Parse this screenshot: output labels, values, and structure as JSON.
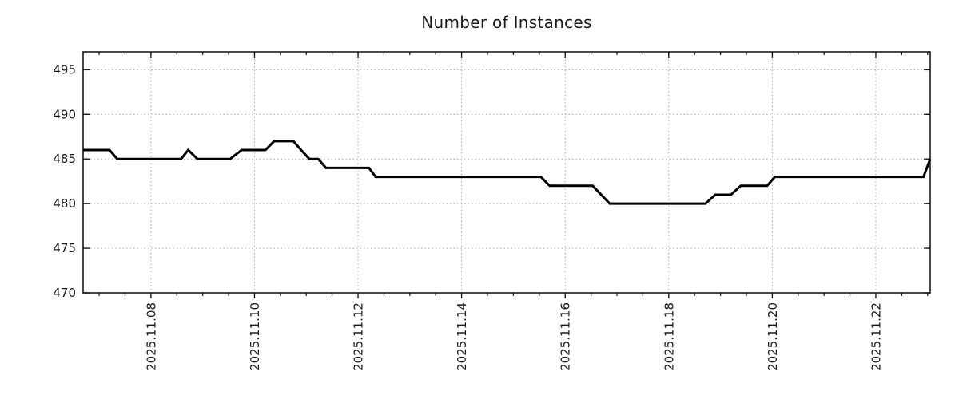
{
  "title": "Number of Instances",
  "colors": {
    "line": "#000000",
    "axis": "#1a1a1a",
    "grid": "#aaaaaa",
    "label": "#1a1a1a",
    "background": "#ffffff"
  },
  "chart_data": {
    "type": "line",
    "title": "Number of Instances",
    "xlabel": "",
    "ylabel": "",
    "legend": "none",
    "grid": "dotted",
    "x_unit": "day-of-November-2025 (fractional)",
    "xlim_days": [
      6.69,
      23.05
    ],
    "ylim": [
      470,
      497
    ],
    "y_ticks": [
      470,
      475,
      480,
      485,
      490,
      495
    ],
    "x_major_ticks": [
      {
        "day": 8,
        "label": "2025.11.08"
      },
      {
        "day": 10,
        "label": "2025.11.10"
      },
      {
        "day": 12,
        "label": "2025.11.12"
      },
      {
        "day": 14,
        "label": "2025.11.14"
      },
      {
        "day": 16,
        "label": "2025.11.16"
      },
      {
        "day": 18,
        "label": "2025.11.18"
      },
      {
        "day": 20,
        "label": "2025.11.20"
      },
      {
        "day": 22,
        "label": "2025.11.22"
      }
    ],
    "x_minor_tick_interval_days": 0.5,
    "series": [
      {
        "name": "instances",
        "color": "#000000",
        "points": [
          [
            6.69,
            486
          ],
          [
            7.2,
            486
          ],
          [
            7.35,
            485
          ],
          [
            8.58,
            485
          ],
          [
            8.72,
            486
          ],
          [
            8.9,
            485
          ],
          [
            9.53,
            485
          ],
          [
            9.75,
            486
          ],
          [
            10.21,
            486
          ],
          [
            10.38,
            487
          ],
          [
            10.75,
            487
          ],
          [
            10.9,
            486
          ],
          [
            11.06,
            485
          ],
          [
            11.23,
            485
          ],
          [
            11.38,
            484
          ],
          [
            12.21,
            484
          ],
          [
            12.34,
            483
          ],
          [
            15.53,
            483
          ],
          [
            15.7,
            482
          ],
          [
            16.53,
            482
          ],
          [
            16.86,
            480
          ],
          [
            18.71,
            480
          ],
          [
            18.9,
            481
          ],
          [
            19.2,
            481
          ],
          [
            19.39,
            482
          ],
          [
            19.9,
            482
          ],
          [
            20.05,
            483
          ],
          [
            22.92,
            483
          ],
          [
            23.05,
            485
          ]
        ]
      }
    ]
  }
}
